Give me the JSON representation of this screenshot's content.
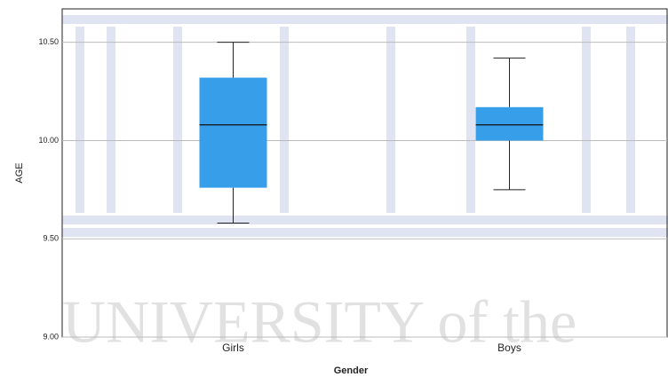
{
  "chart_data": {
    "type": "box",
    "x_label": "Gender",
    "y_label": "AGE",
    "categories": [
      "Girls",
      "Boys"
    ],
    "boxes": [
      {
        "min": 9.58,
        "q1": 9.76,
        "median": 10.08,
        "q3": 10.32,
        "max": 10.5
      },
      {
        "min": 9.75,
        "q1": 10.0,
        "median": 10.08,
        "q3": 10.17,
        "max": 10.42
      }
    ],
    "color": "#379fea",
    "ylim": [
      9.0,
      10.67
    ],
    "yticks": [
      {
        "value": 9.0,
        "label": "9.00"
      },
      {
        "value": 9.5,
        "label": "9.50"
      },
      {
        "value": 10.0,
        "label": "10.00"
      },
      {
        "value": 10.5,
        "label": "10.50"
      }
    ],
    "grid": true,
    "watermark": "UNIVERSITY of the"
  }
}
